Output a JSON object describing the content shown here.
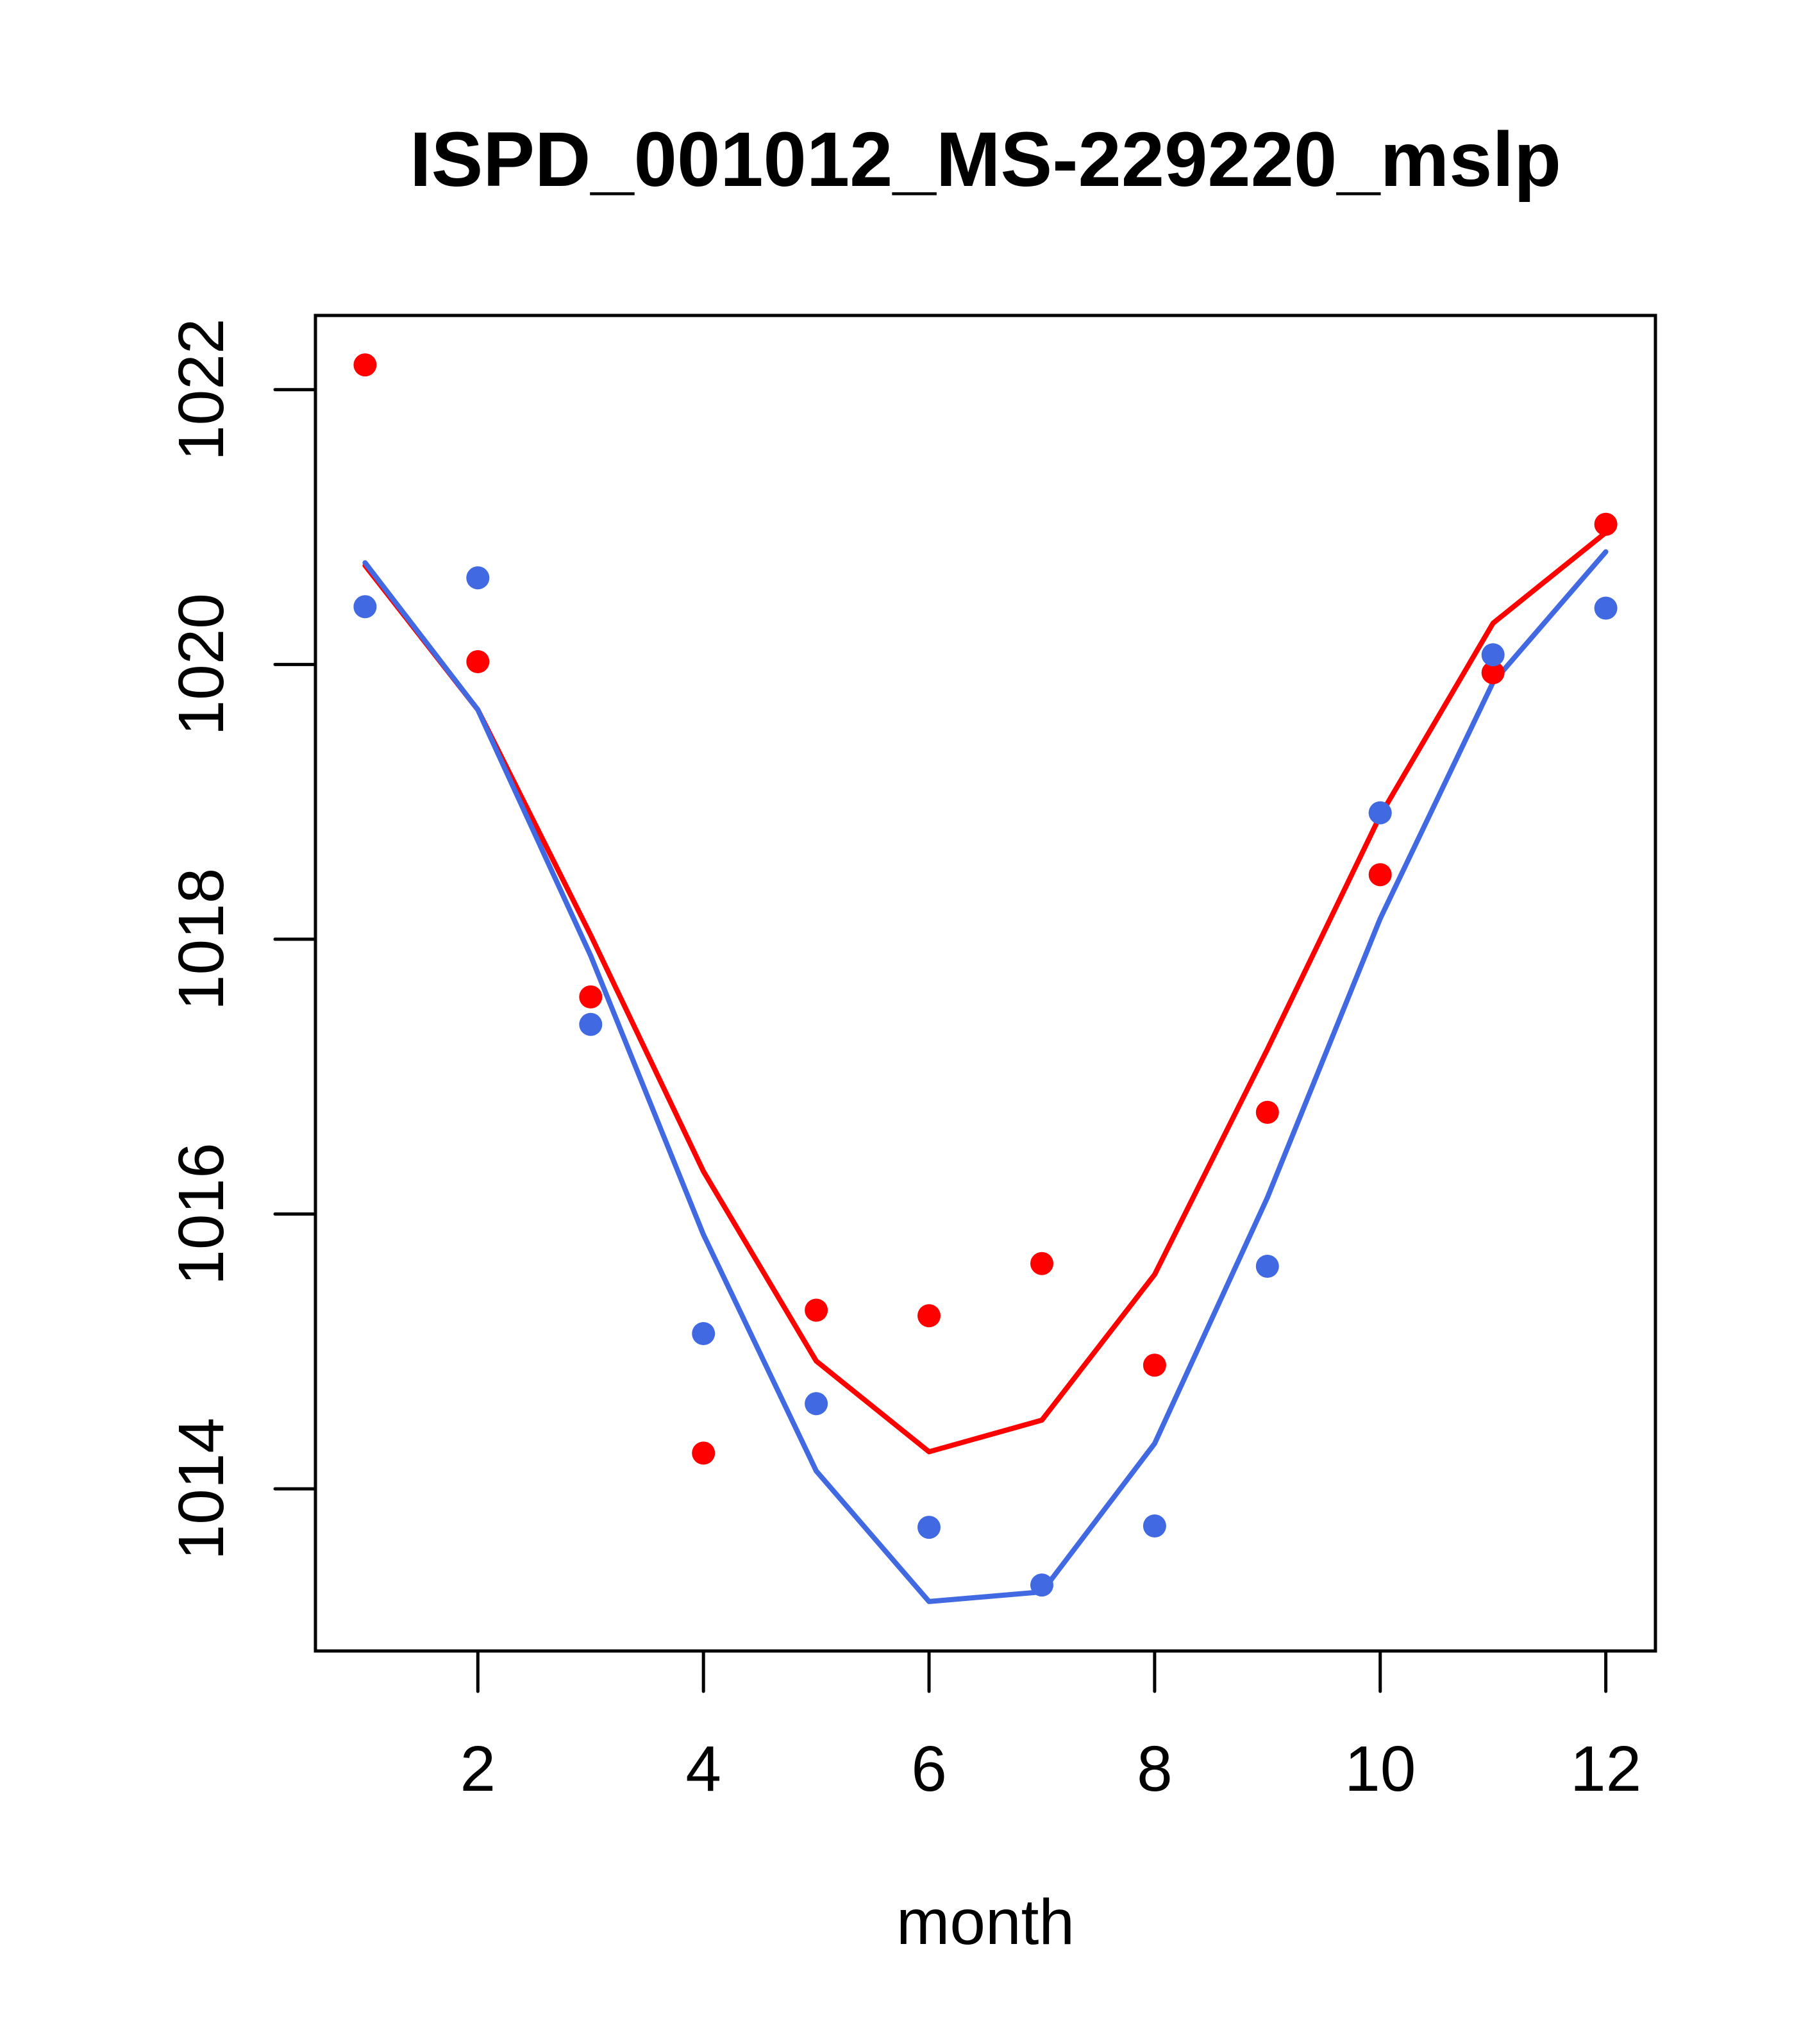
{
  "chart_data": {
    "type": "scatter",
    "title": "ISPD_001012_MS-229220_mslp",
    "xlabel": "month",
    "ylabel": "",
    "xlim": [
      0.56,
      12.44
    ],
    "ylim": [
      1012.82,
      1022.54
    ],
    "x_ticks": [
      2,
      4,
      6,
      8,
      10,
      12
    ],
    "x_tick_labels": [
      "2",
      "4",
      "6",
      "8",
      "10",
      "12"
    ],
    "y_ticks": [
      1014,
      1016,
      1018,
      1020,
      1022
    ],
    "y_tick_labels": [
      "1014",
      "1016",
      "1018",
      "1020",
      "1022"
    ],
    "grid": false,
    "legend": "none",
    "x": [
      1,
      2,
      3,
      4,
      5,
      6,
      7,
      8,
      9,
      10,
      11,
      12
    ],
    "series": [
      {
        "name": "red-points",
        "kind": "points",
        "color": "#ff0000",
        "values": [
          1022.18,
          1020.02,
          1017.58,
          1014.26,
          1015.3,
          1015.26,
          1015.64,
          1014.9,
          1016.74,
          1018.47,
          1019.94,
          1021.02
        ]
      },
      {
        "name": "blue-points",
        "kind": "points",
        "color": "#4169e1",
        "values": [
          1020.42,
          1020.63,
          1017.38,
          1015.13,
          1014.62,
          1013.72,
          1013.3,
          1013.73,
          1015.62,
          1018.92,
          1020.07,
          1020.41
        ]
      },
      {
        "name": "red-line",
        "kind": "line",
        "color": "#ff0000",
        "values": [
          1020.72,
          1019.67,
          1018.03,
          1016.31,
          1014.93,
          1014.27,
          1014.5,
          1015.56,
          1017.2,
          1018.9,
          1020.3,
          1020.96
        ]
      },
      {
        "name": "blue-line",
        "kind": "line",
        "color": "#4169e1",
        "values": [
          1020.74,
          1019.67,
          1017.88,
          1015.85,
          1014.13,
          1013.18,
          1013.25,
          1014.33,
          1016.12,
          1018.15,
          1019.87,
          1020.82
        ]
      }
    ]
  }
}
